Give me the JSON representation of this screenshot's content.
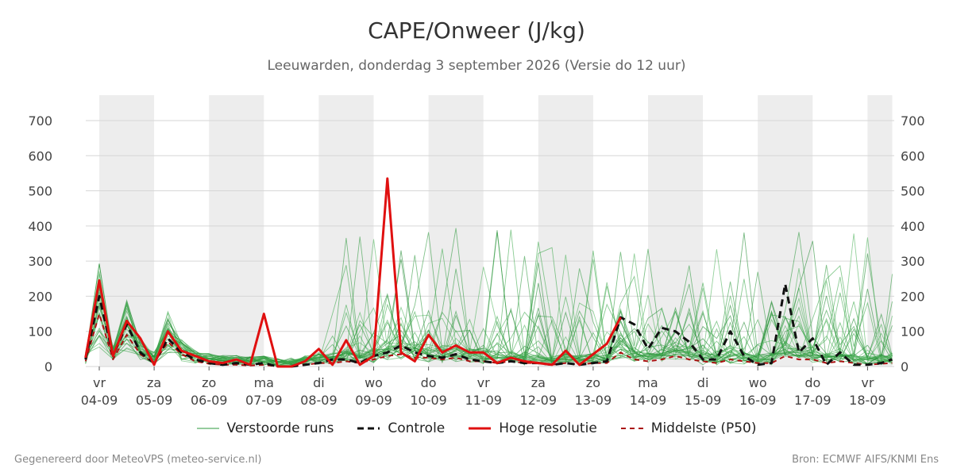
{
  "header": {
    "title": "CAPE/Onweer (J/kg)",
    "subtitle": "Leeuwarden, donderdag  3 september 2026 (Versie do 12 uur)"
  },
  "footer": {
    "left": "Gegenereerd door MeteoVPS (meteo-service.nl)",
    "right": "Bron: ECMWF AIFS/KNMI Ens"
  },
  "legend": [
    {
      "label": "Verstoorde runs",
      "color": "#2e9a3e",
      "style": "thin-solid"
    },
    {
      "label": "Controle",
      "color": "#111111",
      "style": "dashed"
    },
    {
      "label": "Hoge resolutie",
      "color": "#e01010",
      "style": "thick-solid"
    },
    {
      "label": "Middelste (P50)",
      "color": "#aa1111",
      "style": "dashed-thin"
    }
  ],
  "chart_data": {
    "type": "line",
    "title": "CAPE/Onweer (J/kg)",
    "ylim": [
      0,
      770
    ],
    "yticks": [
      0,
      100,
      200,
      300,
      400,
      500,
      600,
      700
    ],
    "xlim": [
      0,
      14.45
    ],
    "xticks": [
      {
        "x": 0,
        "day": "vr",
        "date": "04-09"
      },
      {
        "x": 1,
        "day": "za",
        "date": "05-09"
      },
      {
        "x": 2,
        "day": "zo",
        "date": "06-09"
      },
      {
        "x": 3,
        "day": "ma",
        "date": "07-09"
      },
      {
        "x": 4,
        "day": "di",
        "date": "08-09"
      },
      {
        "x": 5,
        "day": "wo",
        "date": "09-09"
      },
      {
        "x": 6,
        "day": "do",
        "date": "10-09"
      },
      {
        "x": 7,
        "day": "vr",
        "date": "11-09"
      },
      {
        "x": 8,
        "day": "za",
        "date": "12-09"
      },
      {
        "x": 9,
        "day": "zo",
        "date": "13-09"
      },
      {
        "x": 10,
        "day": "ma",
        "date": "14-09"
      },
      {
        "x": 11,
        "day": "di",
        "date": "15-09"
      },
      {
        "x": 12,
        "day": "wo",
        "date": "16-09"
      },
      {
        "x": 13,
        "day": "do",
        "date": "17-09"
      },
      {
        "x": 14,
        "day": "vr",
        "date": "18-09"
      }
    ],
    "shaded_ranges": [
      [
        0,
        1
      ],
      [
        2,
        3
      ],
      [
        4,
        5
      ],
      [
        6,
        7
      ],
      [
        8,
        9
      ],
      [
        10,
        11
      ],
      [
        12,
        13
      ],
      [
        14,
        14.45
      ]
    ],
    "grid": true,
    "legend_position": "bottom",
    "series": [
      {
        "name": "Hoge resolutie",
        "x": [
          -0.25,
          0,
          0.25,
          0.5,
          0.75,
          1,
          1.25,
          1.5,
          1.75,
          2,
          2.25,
          2.5,
          2.75,
          3,
          3.25,
          3.5,
          3.75,
          4,
          4.25,
          4.5,
          4.75,
          5,
          5.25,
          5.5,
          5.75,
          6,
          6.25,
          6.5,
          6.75,
          7,
          7.25,
          7.5,
          7.75,
          8,
          8.25,
          8.5,
          8.75,
          9,
          9.25,
          9.5
        ],
        "values": [
          25,
          245,
          30,
          130,
          80,
          5,
          100,
          45,
          30,
          15,
          10,
          20,
          5,
          150,
          0,
          0,
          15,
          50,
          5,
          75,
          5,
          30,
          535,
          40,
          15,
          90,
          40,
          60,
          40,
          40,
          10,
          25,
          15,
          10,
          5,
          45,
          5,
          35,
          65,
          140
        ]
      },
      {
        "name": "Controle",
        "x": [
          -0.25,
          0,
          0.25,
          0.5,
          0.75,
          1,
          1.25,
          1.5,
          1.75,
          2,
          2.25,
          2.5,
          2.75,
          3,
          3.25,
          3.5,
          3.75,
          4,
          4.25,
          4.5,
          4.75,
          5,
          5.25,
          5.5,
          5.75,
          6,
          6.25,
          6.5,
          6.75,
          7,
          7.25,
          7.5,
          7.75,
          8,
          8.25,
          8.5,
          8.75,
          9,
          9.25,
          9.5,
          9.75,
          10,
          10.25,
          10.5,
          10.75,
          11,
          11.25,
          11.5,
          11.75,
          12,
          12.25,
          12.5,
          12.75,
          13,
          13.25,
          13.5,
          13.75,
          14,
          14.25,
          14.45
        ],
        "values": [
          20,
          200,
          30,
          120,
          40,
          10,
          80,
          40,
          20,
          10,
          5,
          10,
          5,
          10,
          0,
          0,
          5,
          10,
          20,
          20,
          10,
          30,
          40,
          60,
          40,
          30,
          25,
          35,
          20,
          15,
          10,
          15,
          10,
          10,
          5,
          10,
          5,
          10,
          15,
          140,
          120,
          50,
          110,
          100,
          70,
          20,
          20,
          100,
          30,
          5,
          10,
          235,
          40,
          80,
          5,
          40,
          5,
          5,
          10,
          20
        ]
      },
      {
        "name": "Middelste (P50)",
        "x": [
          -0.25,
          0,
          0.25,
          0.5,
          0.75,
          1,
          1.25,
          1.5,
          1.75,
          2,
          2.25,
          2.5,
          2.75,
          3,
          3.25,
          3.5,
          3.75,
          4,
          4.25,
          4.5,
          4.75,
          5,
          5.25,
          5.5,
          5.75,
          6,
          6.25,
          6.5,
          6.75,
          7,
          7.25,
          7.5,
          7.75,
          8,
          8.25,
          8.5,
          8.75,
          9,
          9.25,
          9.5,
          9.75,
          10,
          10.25,
          10.5,
          10.75,
          11,
          11.25,
          11.5,
          11.75,
          12,
          12.25,
          12.5,
          12.75,
          13,
          13.25,
          13.5,
          13.75,
          14,
          14.25,
          14.45
        ],
        "values": [
          15,
          150,
          20,
          90,
          35,
          10,
          70,
          35,
          15,
          8,
          5,
          5,
          3,
          5,
          0,
          0,
          5,
          10,
          10,
          15,
          10,
          20,
          30,
          35,
          25,
          25,
          20,
          25,
          15,
          15,
          10,
          15,
          10,
          10,
          5,
          10,
          5,
          10,
          10,
          40,
          20,
          15,
          20,
          30,
          20,
          15,
          10,
          20,
          15,
          10,
          10,
          30,
          20,
          20,
          10,
          15,
          10,
          5,
          8,
          10
        ]
      }
    ]
  }
}
